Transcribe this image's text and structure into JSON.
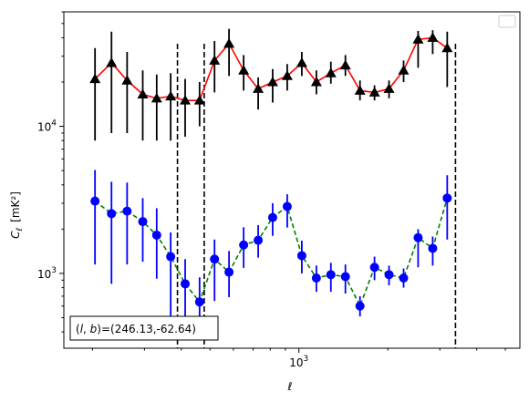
{
  "chart_data": {
    "type": "line",
    "xlabel": "ℓ",
    "ylabel_base": "C",
    "ylabel_sub": "ℓ",
    "ylabel_unit": "[mK²]",
    "x_scale": "log",
    "y_scale": "log",
    "xlim": [
      160,
      5600
    ],
    "ylim": [
      310,
      60000
    ],
    "xticks": [
      {
        "value": 1000,
        "base": "10",
        "exp": "3"
      }
    ],
    "yticks": [
      {
        "value": 1000,
        "base": "10",
        "exp": "3"
      },
      {
        "value": 10000,
        "base": "10",
        "exp": "4"
      }
    ],
    "vlines": [
      388,
      478,
      3390
    ],
    "annotation": "(l, b)=(246.13,-62.64)",
    "annotation_parts": {
      "l": "l",
      "b": "b",
      "value": "=(246.13,-62.64)"
    },
    "legend": {
      "location": "top-right",
      "entries": []
    },
    "series": [
      {
        "marker": "triangle",
        "line_color": "#ff0000",
        "marker_color": "#000000",
        "errbar_color": "#000000",
        "line_style": "solid",
        "x": [
          204,
          232,
          262,
          296,
          330,
          368,
          412,
          461,
          518,
          580,
          650,
          728,
          815,
          913,
          1023,
          1146,
          1283,
          1437,
          1610,
          1803,
          2019,
          2262,
          2533,
          2838,
          3178,
          3560,
          3988,
          4467,
          5003
        ],
        "y": [
          21000,
          27000,
          20500,
          16500,
          15500,
          16000,
          15000,
          15000,
          28000,
          36500,
          24000,
          18000,
          20000,
          22000,
          27000,
          20000,
          23000,
          26000,
          17500,
          17000,
          18000,
          24000,
          39000,
          40000,
          34000,
          0,
          0,
          0,
          0
        ],
        "yerr_low": [
          13000,
          18000,
          11500,
          8500,
          7500,
          8000,
          6500,
          5000,
          11000,
          14500,
          6500,
          5000,
          5500,
          4500,
          5000,
          3500,
          3500,
          4000,
          2500,
          2000,
          2500,
          4000,
          14000,
          9000,
          15500,
          0,
          0,
          0,
          0
        ],
        "yerr_high": [
          13000,
          17000,
          11500,
          7500,
          7000,
          7000,
          6000,
          5000,
          10000,
          9500,
          6500,
          3500,
          4500,
          4500,
          5000,
          4000,
          4500,
          4500,
          3000,
          2000,
          2500,
          4000,
          5500,
          5000,
          10000,
          0,
          0,
          0,
          0
        ],
        "count": 25
      },
      {
        "marker": "circle",
        "line_color": "#008000",
        "marker_color": "#0000ff",
        "errbar_color": "#0000ff",
        "line_style": "dashed",
        "x": [
          204,
          232,
          262,
          296,
          330,
          368,
          412,
          461,
          518,
          580,
          650,
          728,
          815,
          913,
          1023,
          1146,
          1283,
          1437,
          1610,
          1803,
          2019,
          2262,
          2533,
          2838,
          3178,
          3560,
          3988,
          4467,
          5003
        ],
        "y": [
          3100,
          2550,
          2650,
          2250,
          1820,
          1300,
          850,
          640,
          1250,
          1020,
          1560,
          1680,
          2400,
          2850,
          1320,
          930,
          980,
          950,
          600,
          1100,
          980,
          930,
          1750,
          1480,
          3250,
          0,
          0,
          0,
          0
        ],
        "yerr_low": [
          1950,
          1700,
          1500,
          1050,
          900,
          800,
          450,
          280,
          600,
          330,
          470,
          400,
          600,
          800,
          320,
          180,
          230,
          220,
          90,
          200,
          150,
          130,
          650,
          350,
          1550,
          0,
          0,
          0,
          0
        ],
        "yerr_high": [
          1950,
          1650,
          1500,
          1000,
          950,
          600,
          400,
          300,
          450,
          400,
          500,
          450,
          600,
          600,
          350,
          200,
          200,
          200,
          100,
          200,
          150,
          150,
          250,
          300,
          1400,
          0,
          0,
          0,
          0
        ],
        "count": 25
      }
    ]
  }
}
